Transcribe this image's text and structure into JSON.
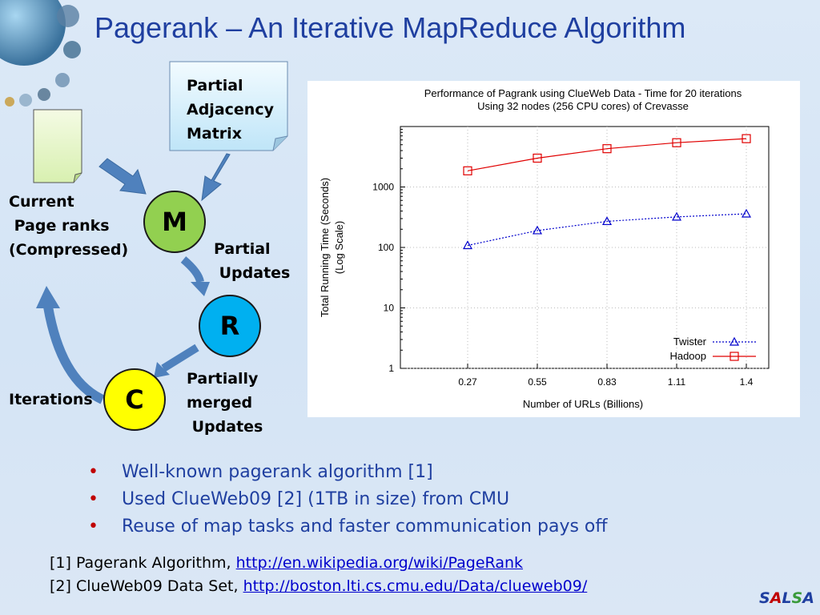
{
  "title": "Pagerank – An Iterative MapReduce Algorithm",
  "diagram": {
    "partial_adjacency_matrix": "Partial\nAdjacency\nMatrix",
    "current_page_ranks": "Current\n Page ranks\n(Compressed)",
    "node_m": "M",
    "node_r": "R",
    "node_c": "C",
    "partial_updates": "Partial\n Updates",
    "partially_merged_updates": "Partially\nmerged\n Updates",
    "iterations": "Iterations",
    "colors": {
      "m": "#92d050",
      "r": "#00b0f0",
      "c": "#ffff00",
      "arrow": "#4f81bd"
    }
  },
  "chart_data": {
    "type": "line",
    "title": "Performance of Pagrank using ClueWeb Data - Time for 20 iterations",
    "subtitle": "Using 32 nodes (256 CPU cores) of Crevasse",
    "xlabel": "Number of URLs (Billions)",
    "ylabel": "Total Running Time (Seconds)",
    "ylabel2": "(Log Scale)",
    "y_scale": "log",
    "ylim": [
      1,
      10000
    ],
    "x": [
      0.27,
      0.55,
      0.83,
      1.11,
      1.4
    ],
    "x_tick_labels": [
      "0.27",
      "0.55",
      "0.83",
      "1.11",
      "1.4"
    ],
    "y_ticks": [
      1,
      10,
      100,
      1000
    ],
    "y_tick_labels": [
      "1",
      "10",
      "100",
      "1000"
    ],
    "legend_position": "bottom-right",
    "series": [
      {
        "name": "Twister",
        "values": [
          108,
          190,
          270,
          320,
          360
        ],
        "color": "#0000cc",
        "style": "dotted",
        "marker": "triangle"
      },
      {
        "name": "Hadoop",
        "values": [
          1850,
          3000,
          4300,
          5400,
          6300
        ],
        "color": "#e00000",
        "style": "solid",
        "marker": "square"
      }
    ]
  },
  "bullets": [
    "Well-known pagerank algorithm [1]",
    "Used ClueWeb09 [2] (1TB in size) from CMU",
    "Reuse of map tasks and faster communication pays off"
  ],
  "bullet_glyph": "•",
  "refs": [
    {
      "prefix": "[1] Pagerank Algorithm, ",
      "link": "http://en.wikipedia.org/wiki/PageRank"
    },
    {
      "prefix": "[2] ClueWeb09 Data Set, ",
      "link": "http://boston.lti.cs.cmu.edu/Data/clueweb09/"
    }
  ],
  "logo": {
    "letters": [
      "S",
      "A",
      "L",
      "S",
      "A"
    ],
    "colors": [
      "#1f3fa0",
      "#c00000",
      "#1f3fa0",
      "#3a9b3a",
      "#1f3fa0"
    ]
  }
}
